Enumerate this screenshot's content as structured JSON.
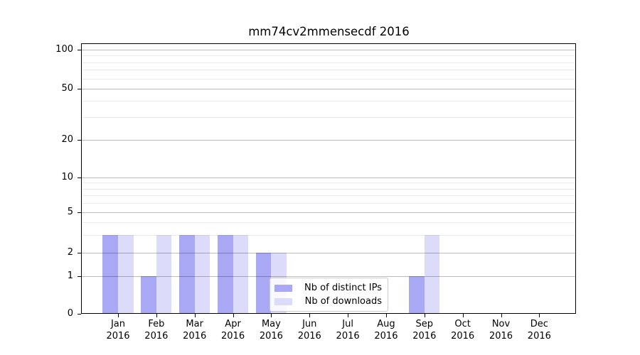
{
  "title": "mm74cv2mmensecdf 2016",
  "chart_data": {
    "type": "bar",
    "title": "mm74cv2mmensecdf 2016",
    "categories": [
      "Jan 2016",
      "Feb 2016",
      "Mar 2016",
      "Apr 2016",
      "May 2016",
      "Jun 2016",
      "Jul 2016",
      "Aug 2016",
      "Sep 2016",
      "Oct 2016",
      "Nov 2016",
      "Dec 2016"
    ],
    "x_tick_months": [
      "Jan",
      "Feb",
      "Mar",
      "Apr",
      "May",
      "Jun",
      "Jul",
      "Aug",
      "Sep",
      "Oct",
      "Nov",
      "Dec"
    ],
    "x_tick_year": "2016",
    "series": [
      {
        "name": "Nb of distinct IPs",
        "color": "#a8a8f5",
        "values": [
          3,
          1,
          3,
          3,
          2,
          0,
          0,
          0,
          1,
          0,
          0,
          0
        ]
      },
      {
        "name": "Nb of downloads",
        "color": "#dcdcfa",
        "values": [
          3,
          3,
          3,
          3,
          2,
          0,
          0,
          0,
          3,
          0,
          0,
          0
        ]
      }
    ],
    "yscale": "log1p",
    "ylim": [
      0,
      100
    ],
    "y_major_ticks": [
      0,
      1,
      2,
      5,
      10,
      20,
      50,
      100
    ],
    "y_minor_gridlines": [
      3,
      4,
      6,
      7,
      8,
      9,
      30,
      40,
      60,
      70,
      80,
      90
    ],
    "grid": true,
    "legend_position": "lower center"
  },
  "legend": {
    "items": [
      {
        "label": "Nb of distinct IPs"
      },
      {
        "label": "Nb of downloads"
      }
    ]
  },
  "colors": {
    "bar_distinct_ips": "#a8a8f5",
    "bar_downloads": "#dcdcfa",
    "grid_major": "#bdbdbd",
    "grid_minor": "#ededed",
    "axis": "#000000",
    "legend_border": "#cccccc",
    "background": "#ffffff"
  }
}
